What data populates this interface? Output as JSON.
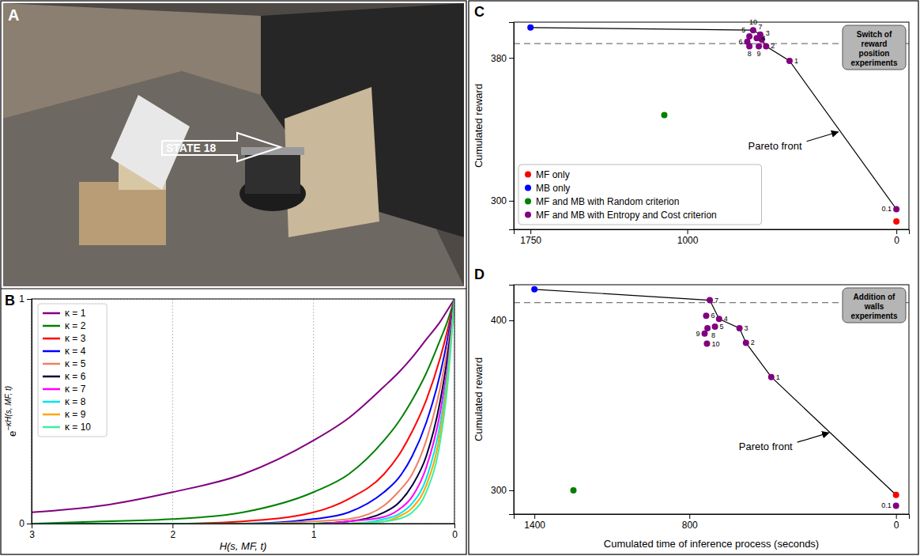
{
  "photo": {
    "letter": "A",
    "label": "STATE 18"
  },
  "chart_data": [
    {
      "type": "line",
      "letter": "B",
      "xlabel": "H(s, MF, t)",
      "ylabel": {
        "base": "e",
        "exponent": "−κH(s, MF, t)"
      },
      "x": [
        3,
        2.5,
        2,
        1.5,
        1,
        0.75,
        0.5,
        0.4,
        0.3,
        0.2,
        0.1,
        0.05,
        0
      ],
      "xlim": [
        3,
        0
      ],
      "xticks": [
        3,
        2,
        1,
        0
      ],
      "ylim": [
        0,
        1
      ],
      "yticks": [
        0,
        1
      ],
      "grid": true,
      "legend": "upper left",
      "series": [
        {
          "name": "κ = 1",
          "color": "#800080",
          "values": [
            0.05,
            0.08,
            0.14,
            0.22,
            0.37,
            0.47,
            0.61,
            0.67,
            0.74,
            0.82,
            0.9,
            0.95,
            1
          ]
        },
        {
          "name": "κ = 2",
          "color": "#008000",
          "values": [
            0,
            0.01,
            0.02,
            0.05,
            0.14,
            0.22,
            0.37,
            0.45,
            0.55,
            0.67,
            0.82,
            0.9,
            1
          ]
        },
        {
          "name": "κ = 3",
          "color": "#ff0000",
          "values": [
            0,
            0,
            0,
            0.01,
            0.05,
            0.11,
            0.22,
            0.3,
            0.41,
            0.55,
            0.74,
            0.86,
            1
          ]
        },
        {
          "name": "κ = 4",
          "color": "#0000ff",
          "values": [
            0,
            0,
            0,
            0,
            0.02,
            0.05,
            0.14,
            0.2,
            0.3,
            0.45,
            0.67,
            0.82,
            1
          ]
        },
        {
          "name": "κ = 5",
          "color": "#f08060",
          "values": [
            0,
            0,
            0,
            0,
            0.01,
            0.02,
            0.08,
            0.14,
            0.22,
            0.37,
            0.61,
            0.78,
            1
          ]
        },
        {
          "name": "κ = 6",
          "color": "#00003c",
          "values": [
            0,
            0,
            0,
            0,
            0,
            0.01,
            0.05,
            0.09,
            0.17,
            0.3,
            0.55,
            0.74,
            1
          ]
        },
        {
          "name": "κ = 7",
          "color": "#ff00ff",
          "values": [
            0,
            0,
            0,
            0,
            0,
            0.01,
            0.03,
            0.06,
            0.12,
            0.25,
            0.5,
            0.7,
            1
          ]
        },
        {
          "name": "κ = 8",
          "color": "#00e5ee",
          "values": [
            0,
            0,
            0,
            0,
            0,
            0,
            0.02,
            0.04,
            0.09,
            0.2,
            0.45,
            0.67,
            1
          ]
        },
        {
          "name": "κ = 9",
          "color": "#ffa500",
          "values": [
            0,
            0,
            0,
            0,
            0,
            0,
            0.01,
            0.03,
            0.07,
            0.17,
            0.41,
            0.64,
            1
          ]
        },
        {
          "name": "κ = 10",
          "color": "#3cf0a0",
          "values": [
            0,
            0,
            0,
            0,
            0,
            0,
            0.01,
            0.02,
            0.05,
            0.14,
            0.37,
            0.61,
            1
          ]
        }
      ]
    },
    {
      "type": "scatter",
      "letter": "C",
      "ylabel": "Cumulated reward",
      "annotation": "Switch of reward position experiments",
      "xlim": [
        1830,
        -60
      ],
      "xticks": [
        1750,
        1000,
        0
      ],
      "ylim": [
        284,
        400
      ],
      "yticks": [
        300,
        380
      ],
      "legend": "lower left",
      "reference_line": {
        "value": 388,
        "line_style": "dashed"
      },
      "front": {
        "label": "Pareto front",
        "x": [
          1750,
          685,
          651,
          644,
          623,
          511,
          0
        ],
        "y": [
          397,
          395.5,
          393,
          390.3,
          386.5,
          378.3,
          295.3
        ]
      },
      "series": [
        {
          "name": "MF only",
          "color": "#ff0000",
          "x": [
            0
          ],
          "values": [
            288.4
          ]
        },
        {
          "name": "MB only",
          "color": "#0000ff",
          "x": [
            1750
          ],
          "values": [
            397
          ]
        },
        {
          "name": "MF and MB with Random criterion",
          "color": "#008000",
          "x": [
            1110
          ],
          "values": [
            348
          ]
        },
        {
          "name": "MF and MB with Entropy and Cost criterion",
          "color": "#800080",
          "x": [
            0,
            511,
            623,
            644,
            668,
            703,
            713,
            651,
            703,
            658,
            685
          ],
          "values": [
            295.3,
            378.3,
            386.5,
            390.3,
            391,
            392,
            389,
            393,
            386.5,
            386.5,
            395.5
          ],
          "labels": [
            "0.1",
            "1",
            "2",
            "3",
            "4",
            "5",
            "6",
            "7",
            "8",
            "9",
            "10"
          ]
        }
      ]
    },
    {
      "type": "scatter",
      "letter": "D",
      "ylabel": "Cumulated reward",
      "xlabel": "Cumulated time of inference process (seconds)",
      "annotation": "Addition of walls experiments",
      "xlim": [
        1480,
        -50
      ],
      "xticks": [
        1400,
        800,
        0
      ],
      "ylim": [
        286,
        421
      ],
      "yticks": [
        300,
        400
      ],
      "reference_line": {
        "value": 410.5,
        "line_style": "dashed"
      },
      "front": {
        "label": "Pareto front",
        "x": [
          1400,
          721,
          685,
          606,
          581,
          483,
          0
        ],
        "y": [
          418.3,
          411.9,
          400.9,
          395.4,
          386.8,
          366.7,
          297.3
        ]
      },
      "series": [
        {
          "color": "#ff0000",
          "x": [
            0
          ],
          "values": [
            297.3
          ]
        },
        {
          "color": "#0000ff",
          "x": [
            1400
          ],
          "values": [
            418.3
          ]
        },
        {
          "color": "#008000",
          "x": [
            1249
          ],
          "values": [
            300
          ]
        },
        {
          "color": "#800080",
          "x": [
            0,
            483,
            581,
            606,
            685,
            701,
            735,
            721,
            730,
            741,
            732
          ],
          "values": [
            290.9,
            366.7,
            386.8,
            395.4,
            400.9,
            396.3,
            402.7,
            411.9,
            395.4,
            392.2,
            386.3
          ],
          "labels": [
            "0.1",
            "1",
            "2",
            "3",
            "4",
            "5",
            "6",
            "7",
            "8",
            "9",
            "10"
          ]
        }
      ]
    }
  ]
}
